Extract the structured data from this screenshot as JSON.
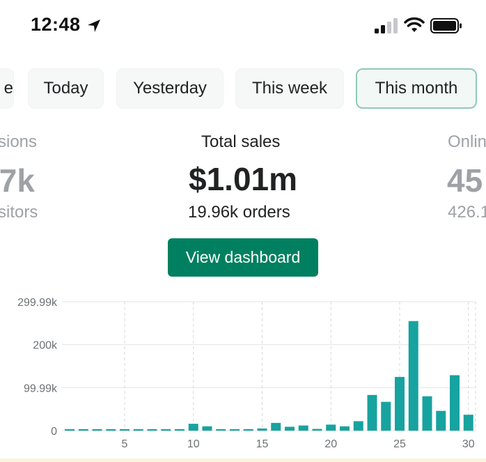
{
  "status_bar": {
    "time": "12:48",
    "icons": [
      "location-arrow-icon",
      "cellular-signal-icon",
      "wifi-icon",
      "battery-icon"
    ]
  },
  "tabs": [
    {
      "label": "e",
      "selected": false
    },
    {
      "label": "Today",
      "selected": false
    },
    {
      "label": "Yesterday",
      "selected": false
    },
    {
      "label": "This week",
      "selected": false
    },
    {
      "label": "This month",
      "selected": true
    }
  ],
  "metrics": {
    "left": {
      "label": "sions",
      "value": ".7k",
      "sub": "sitors"
    },
    "center": {
      "label": "Total sales",
      "value": "$1.01m",
      "sub": "19.96k orders"
    },
    "right": {
      "label": "Onlin",
      "value": "45",
      "sub": "426.1"
    }
  },
  "view_dashboard_label": "View dashboard",
  "colors": {
    "accent": "#008060",
    "bar": "#17a3a0",
    "selected_tab_border": "#8fc9b5"
  },
  "chart_data": {
    "type": "bar",
    "x": [
      1,
      2,
      3,
      4,
      5,
      6,
      7,
      8,
      9,
      10,
      11,
      12,
      13,
      14,
      15,
      16,
      17,
      18,
      19,
      20,
      21,
      22,
      23,
      24,
      25,
      26,
      27,
      28,
      29,
      30
    ],
    "values": [
      3500,
      3500,
      3500,
      3500,
      3500,
      3500,
      3500,
      3500,
      3500,
      16000,
      10000,
      3500,
      3500,
      3500,
      5000,
      18000,
      9000,
      12000,
      4000,
      14000,
      10000,
      22000,
      83000,
      67000,
      125000,
      255000,
      80000,
      46000,
      129000,
      37000
    ],
    "xticks": [
      "5",
      "10",
      "15",
      "20",
      "25",
      "30"
    ],
    "yticks": [
      "0",
      "99.99k",
      "200k",
      "299.99k"
    ],
    "ylim": [
      0,
      299990
    ],
    "grid": true
  }
}
